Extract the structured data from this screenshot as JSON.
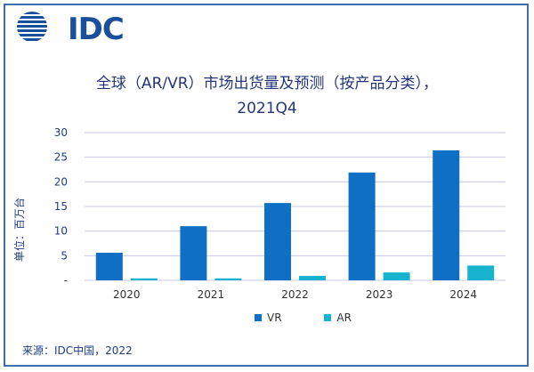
{
  "brand": {
    "logo_text": "IDC",
    "color": "#1a4f9c"
  },
  "title_line1": "全球（AR/VR）市场出货量及预测（按产品分类），",
  "title_line2": "2021Q4",
  "source": "来源：IDC中国，2022",
  "colors": {
    "vr": "#0f6fc4",
    "ar": "#17b3cf",
    "grid": "#c8c8e6",
    "tick": "#1f3c86"
  },
  "chart_data": {
    "type": "bar",
    "categories": [
      "2020",
      "2021",
      "2022",
      "2023",
      "2024"
    ],
    "series": [
      {
        "name": "VR",
        "values": [
          5.6,
          11.0,
          15.7,
          21.9,
          26.4
        ]
      },
      {
        "name": "AR",
        "values": [
          0.4,
          0.4,
          0.9,
          1.6,
          3.0
        ]
      }
    ],
    "ylabel": "单位：百万台",
    "ylim": [
      0,
      30
    ],
    "yticks": [
      0,
      5,
      10,
      15,
      20,
      25,
      30
    ],
    "ytick_labels": [
      "-",
      "5",
      "10",
      "15",
      "20",
      "25",
      "30"
    ],
    "grid": true,
    "legend": "bottom"
  }
}
